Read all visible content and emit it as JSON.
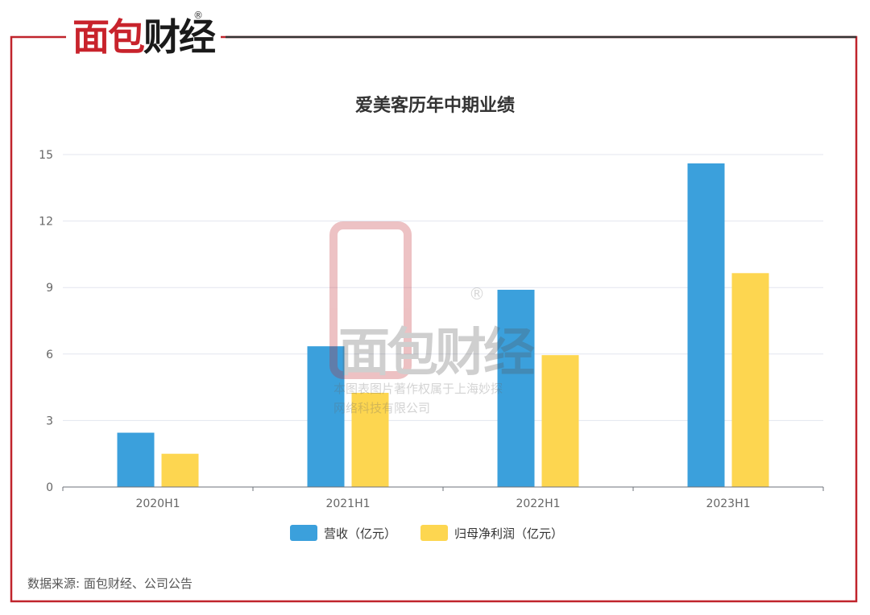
{
  "brand": {
    "logo_text_red": "面包",
    "logo_text_dark": "财经",
    "registered_mark": "®"
  },
  "watermark": {
    "logo": "面包财经",
    "registered_mark": "®",
    "line1": "本图表图片著作权属于上海妙探",
    "line2": "网络科技有限公司"
  },
  "source_note": "数据来源: 面包财经、公司公告",
  "colors": {
    "frame": "#c0242c",
    "series_revenue": "#3ba0dc",
    "series_profit": "#fdd650"
  },
  "chart_data": {
    "type": "bar",
    "title": "爱美客历年中期业绩",
    "categories": [
      "2020H1",
      "2021H1",
      "2022H1",
      "2023H1"
    ],
    "series": [
      {
        "name": "营收（亿元）",
        "values": [
          2.45,
          6.35,
          8.9,
          14.6
        ]
      },
      {
        "name": "归母净利润（亿元）",
        "values": [
          1.5,
          4.25,
          5.95,
          9.65
        ]
      }
    ],
    "yticks": [
      "0",
      "3",
      "6",
      "9",
      "12",
      "15"
    ],
    "ylim": [
      0,
      15
    ],
    "grid": true,
    "legend_position": "bottom"
  }
}
